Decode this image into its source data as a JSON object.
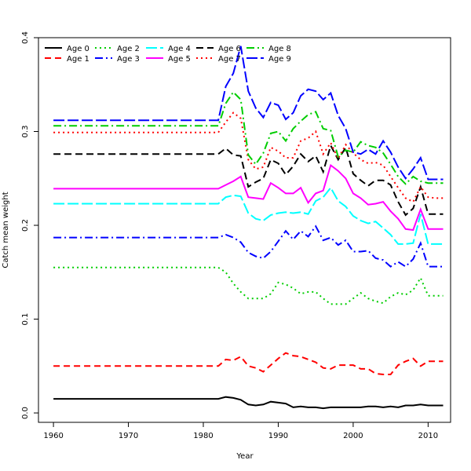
{
  "chart_data": {
    "type": "line",
    "xlabel": "Year",
    "ylabel": "Catch mean weight",
    "xlim": [
      1958,
      2013
    ],
    "ylim": [
      -0.01,
      0.4
    ],
    "xticks": [
      1960,
      1970,
      1980,
      1990,
      2000,
      2010
    ],
    "yticks": [
      0.0,
      0.1,
      0.2,
      0.3,
      0.4
    ],
    "ytick_labels": [
      "0.0",
      "0.1",
      "0.2",
      "0.3",
      "0.4"
    ],
    "legend_position": "top-left",
    "x": [
      1960,
      1961,
      1962,
      1963,
      1964,
      1965,
      1966,
      1967,
      1968,
      1969,
      1970,
      1971,
      1972,
      1973,
      1974,
      1975,
      1976,
      1977,
      1978,
      1979,
      1980,
      1981,
      1982,
      1983,
      1984,
      1985,
      1986,
      1987,
      1988,
      1989,
      1990,
      1991,
      1992,
      1993,
      1994,
      1995,
      1996,
      1997,
      1998,
      1999,
      2000,
      2001,
      2002,
      2003,
      2004,
      2005,
      2006,
      2007,
      2008,
      2009,
      2010,
      2011,
      2012
    ],
    "series": [
      {
        "name": "Age 0",
        "color": "#000000",
        "dash": "",
        "values": [
          0.015,
          0.015,
          0.015,
          0.015,
          0.015,
          0.015,
          0.015,
          0.015,
          0.015,
          0.015,
          0.015,
          0.015,
          0.015,
          0.015,
          0.015,
          0.015,
          0.015,
          0.015,
          0.015,
          0.015,
          0.015,
          0.015,
          0.015,
          0.017,
          0.016,
          0.014,
          0.009,
          0.008,
          0.009,
          0.012,
          0.011,
          0.01,
          0.006,
          0.007,
          0.006,
          0.006,
          0.005,
          0.006,
          0.006,
          0.006,
          0.006,
          0.006,
          0.007,
          0.007,
          0.006,
          0.007,
          0.006,
          0.008,
          0.008,
          0.009,
          0.008,
          0.008,
          0.008
        ]
      },
      {
        "name": "Age 1",
        "color": "#ff0000",
        "dash": "8,5",
        "values": [
          0.05,
          0.05,
          0.05,
          0.05,
          0.05,
          0.05,
          0.05,
          0.05,
          0.05,
          0.05,
          0.05,
          0.05,
          0.05,
          0.05,
          0.05,
          0.05,
          0.05,
          0.05,
          0.05,
          0.05,
          0.05,
          0.05,
          0.05,
          0.057,
          0.056,
          0.06,
          0.05,
          0.048,
          0.044,
          0.051,
          0.058,
          0.064,
          0.061,
          0.06,
          0.057,
          0.054,
          0.048,
          0.047,
          0.051,
          0.051,
          0.051,
          0.047,
          0.047,
          0.042,
          0.041,
          0.041,
          0.051,
          0.055,
          0.058,
          0.05,
          0.055,
          0.055,
          0.055
        ]
      },
      {
        "name": "Age 2",
        "color": "#00cd00",
        "dash": "2,4",
        "values": [
          0.155,
          0.155,
          0.155,
          0.155,
          0.155,
          0.155,
          0.155,
          0.155,
          0.155,
          0.155,
          0.155,
          0.155,
          0.155,
          0.155,
          0.155,
          0.155,
          0.155,
          0.155,
          0.155,
          0.155,
          0.155,
          0.155,
          0.155,
          0.15,
          0.138,
          0.129,
          0.122,
          0.122,
          0.122,
          0.127,
          0.139,
          0.137,
          0.133,
          0.127,
          0.129,
          0.129,
          0.122,
          0.116,
          0.116,
          0.116,
          0.122,
          0.128,
          0.122,
          0.119,
          0.117,
          0.124,
          0.128,
          0.126,
          0.131,
          0.144,
          0.125,
          0.125,
          0.125
        ]
      },
      {
        "name": "Age 3",
        "color": "#0000ff",
        "dash": "10,4,2,4",
        "values": [
          0.187,
          0.187,
          0.187,
          0.187,
          0.187,
          0.187,
          0.187,
          0.187,
          0.187,
          0.187,
          0.187,
          0.187,
          0.187,
          0.187,
          0.187,
          0.187,
          0.187,
          0.187,
          0.187,
          0.187,
          0.187,
          0.187,
          0.187,
          0.19,
          0.187,
          0.182,
          0.171,
          0.167,
          0.165,
          0.172,
          0.183,
          0.194,
          0.185,
          0.194,
          0.188,
          0.199,
          0.184,
          0.187,
          0.179,
          0.184,
          0.172,
          0.172,
          0.173,
          0.165,
          0.163,
          0.156,
          0.161,
          0.156,
          0.164,
          0.181,
          0.156,
          0.156,
          0.156
        ]
      },
      {
        "name": "Age 4",
        "color": "#00ffff",
        "dash": "14,4",
        "values": [
          0.223,
          0.223,
          0.223,
          0.223,
          0.223,
          0.223,
          0.223,
          0.223,
          0.223,
          0.223,
          0.223,
          0.223,
          0.223,
          0.223,
          0.223,
          0.223,
          0.223,
          0.223,
          0.223,
          0.223,
          0.223,
          0.223,
          0.223,
          0.23,
          0.232,
          0.231,
          0.213,
          0.207,
          0.205,
          0.211,
          0.213,
          0.214,
          0.213,
          0.214,
          0.212,
          0.226,
          0.23,
          0.24,
          0.226,
          0.22,
          0.21,
          0.205,
          0.202,
          0.204,
          0.197,
          0.19,
          0.18,
          0.18,
          0.181,
          0.212,
          0.18,
          0.18,
          0.18
        ]
      },
      {
        "name": "Age 5",
        "color": "#ff00ff",
        "dash": "",
        "values": [
          0.239,
          0.239,
          0.239,
          0.239,
          0.239,
          0.239,
          0.239,
          0.239,
          0.239,
          0.239,
          0.239,
          0.239,
          0.239,
          0.239,
          0.239,
          0.239,
          0.239,
          0.239,
          0.239,
          0.239,
          0.239,
          0.239,
          0.239,
          0.243,
          0.247,
          0.252,
          0.23,
          0.229,
          0.228,
          0.245,
          0.24,
          0.234,
          0.234,
          0.24,
          0.224,
          0.234,
          0.237,
          0.264,
          0.258,
          0.25,
          0.234,
          0.229,
          0.222,
          0.223,
          0.225,
          0.215,
          0.207,
          0.196,
          0.195,
          0.217,
          0.196,
          0.196,
          0.196
        ]
      },
      {
        "name": "Age 6",
        "color": "#000000",
        "dash": "9,5",
        "values": [
          0.276,
          0.276,
          0.276,
          0.276,
          0.276,
          0.276,
          0.276,
          0.276,
          0.276,
          0.276,
          0.276,
          0.276,
          0.276,
          0.276,
          0.276,
          0.276,
          0.276,
          0.276,
          0.276,
          0.276,
          0.276,
          0.276,
          0.276,
          0.282,
          0.275,
          0.274,
          0.241,
          0.246,
          0.25,
          0.27,
          0.266,
          0.254,
          0.263,
          0.276,
          0.268,
          0.274,
          0.257,
          0.285,
          0.27,
          0.283,
          0.255,
          0.248,
          0.242,
          0.248,
          0.248,
          0.243,
          0.225,
          0.211,
          0.218,
          0.241,
          0.212,
          0.212,
          0.212
        ]
      },
      {
        "name": "Age 7",
        "color": "#ff0000",
        "dash": "2,4",
        "values": [
          0.299,
          0.299,
          0.299,
          0.299,
          0.299,
          0.299,
          0.299,
          0.299,
          0.299,
          0.299,
          0.299,
          0.299,
          0.299,
          0.299,
          0.299,
          0.299,
          0.299,
          0.299,
          0.299,
          0.299,
          0.299,
          0.299,
          0.299,
          0.31,
          0.32,
          0.314,
          0.27,
          0.26,
          0.262,
          0.283,
          0.279,
          0.272,
          0.272,
          0.29,
          0.293,
          0.3,
          0.276,
          0.288,
          0.271,
          0.286,
          0.277,
          0.27,
          0.266,
          0.267,
          0.264,
          0.252,
          0.24,
          0.229,
          0.225,
          0.241,
          0.23,
          0.229,
          0.229
        ]
      },
      {
        "name": "Age 8",
        "color": "#00cd00",
        "dash": "10,4,2,4",
        "values": [
          0.306,
          0.306,
          0.306,
          0.306,
          0.306,
          0.306,
          0.306,
          0.306,
          0.306,
          0.306,
          0.306,
          0.306,
          0.306,
          0.306,
          0.306,
          0.306,
          0.306,
          0.306,
          0.306,
          0.306,
          0.306,
          0.306,
          0.306,
          0.33,
          0.342,
          0.334,
          0.275,
          0.265,
          0.277,
          0.298,
          0.3,
          0.29,
          0.303,
          0.311,
          0.318,
          0.321,
          0.303,
          0.301,
          0.273,
          0.28,
          0.278,
          0.289,
          0.285,
          0.283,
          0.277,
          0.265,
          0.252,
          0.244,
          0.252,
          0.247,
          0.245,
          0.245,
          0.245
        ]
      },
      {
        "name": "Age 9",
        "color": "#0000ff",
        "dash": "14,4",
        "values": [
          0.312,
          0.312,
          0.312,
          0.312,
          0.312,
          0.312,
          0.312,
          0.312,
          0.312,
          0.312,
          0.312,
          0.312,
          0.312,
          0.312,
          0.312,
          0.312,
          0.312,
          0.312,
          0.312,
          0.312,
          0.312,
          0.312,
          0.312,
          0.348,
          0.362,
          0.391,
          0.343,
          0.325,
          0.315,
          0.331,
          0.328,
          0.313,
          0.32,
          0.338,
          0.345,
          0.343,
          0.334,
          0.341,
          0.317,
          0.303,
          0.278,
          0.276,
          0.281,
          0.276,
          0.29,
          0.278,
          0.262,
          0.25,
          0.26,
          0.272,
          0.249,
          0.249,
          0.249
        ]
      }
    ]
  }
}
